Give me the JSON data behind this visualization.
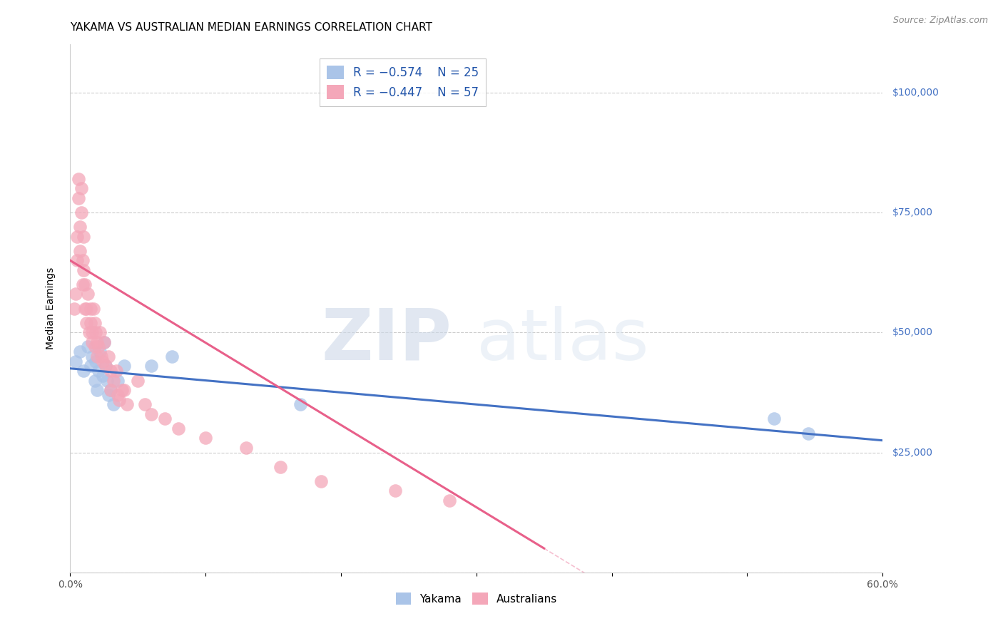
{
  "title": "YAKAMA VS AUSTRALIAN MEDIAN EARNINGS CORRELATION CHART",
  "source": "Source: ZipAtlas.com",
  "ylabel": "Median Earnings",
  "watermark_zip": "ZIP",
  "watermark_atlas": "atlas",
  "legend_entries": [
    {
      "label": "R = −0.574    N = 25",
      "color": "#aac4e8"
    },
    {
      "label": "R = −0.447    N = 57",
      "color": "#f4a7b9"
    }
  ],
  "legend_labels": [
    "Yakama",
    "Australians"
  ],
  "xlim": [
    0.0,
    0.6
  ],
  "ylim": [
    0,
    110000
  ],
  "yticks": [
    0,
    25000,
    50000,
    75000,
    100000
  ],
  "ytick_labels": [
    "",
    "$25,000",
    "$50,000",
    "$75,000",
    "$100,000"
  ],
  "xticks": [
    0.0,
    0.1,
    0.2,
    0.3,
    0.4,
    0.5,
    0.6
  ],
  "xtick_labels": [
    "0.0%",
    "",
    "",
    "",
    "",
    "",
    "60.0%"
  ],
  "blue_scatter_x": [
    0.004,
    0.007,
    0.01,
    0.013,
    0.015,
    0.016,
    0.018,
    0.019,
    0.02,
    0.021,
    0.022,
    0.024,
    0.025,
    0.026,
    0.027,
    0.028,
    0.03,
    0.032,
    0.035,
    0.04,
    0.06,
    0.075,
    0.17,
    0.52,
    0.545
  ],
  "blue_scatter_y": [
    44000,
    46000,
    42000,
    47000,
    43000,
    45000,
    40000,
    44000,
    38000,
    42000,
    46000,
    41000,
    48000,
    43000,
    40000,
    37000,
    38000,
    35000,
    40000,
    43000,
    43000,
    45000,
    35000,
    32000,
    29000
  ],
  "pink_scatter_x": [
    0.003,
    0.004,
    0.005,
    0.005,
    0.006,
    0.006,
    0.007,
    0.007,
    0.008,
    0.008,
    0.009,
    0.009,
    0.01,
    0.01,
    0.011,
    0.011,
    0.012,
    0.012,
    0.013,
    0.014,
    0.015,
    0.015,
    0.016,
    0.016,
    0.017,
    0.018,
    0.018,
    0.019,
    0.02,
    0.02,
    0.021,
    0.022,
    0.023,
    0.024,
    0.025,
    0.026,
    0.028,
    0.03,
    0.03,
    0.032,
    0.034,
    0.035,
    0.036,
    0.038,
    0.04,
    0.042,
    0.05,
    0.055,
    0.06,
    0.07,
    0.08,
    0.1,
    0.13,
    0.155,
    0.185,
    0.24,
    0.28
  ],
  "pink_scatter_y": [
    55000,
    58000,
    70000,
    65000,
    78000,
    82000,
    72000,
    67000,
    80000,
    75000,
    65000,
    60000,
    70000,
    63000,
    55000,
    60000,
    55000,
    52000,
    58000,
    50000,
    55000,
    52000,
    50000,
    48000,
    55000,
    52000,
    47000,
    50000,
    48000,
    45000,
    47000,
    50000,
    45000,
    44000,
    48000,
    43000,
    45000,
    42000,
    38000,
    40000,
    42000,
    37000,
    36000,
    38000,
    38000,
    35000,
    40000,
    35000,
    33000,
    32000,
    30000,
    28000,
    26000,
    22000,
    19000,
    17000,
    15000
  ],
  "blue_line_x0": 0.0,
  "blue_line_y0": 42500,
  "blue_line_x1": 0.6,
  "blue_line_y1": 27500,
  "pink_line_x0": 0.0,
  "pink_line_y0": 65000,
  "pink_line_x1": 0.35,
  "pink_line_y1": 5000,
  "blue_line_color": "#4472c4",
  "pink_line_color": "#e8608a",
  "blue_dot_color": "#aac4e8",
  "pink_dot_color": "#f4a7b9",
  "grid_color": "#cccccc",
  "background_color": "#ffffff",
  "right_axis_color": "#4472c4",
  "title_fontsize": 11,
  "axis_label_fontsize": 10,
  "tick_fontsize": 10
}
